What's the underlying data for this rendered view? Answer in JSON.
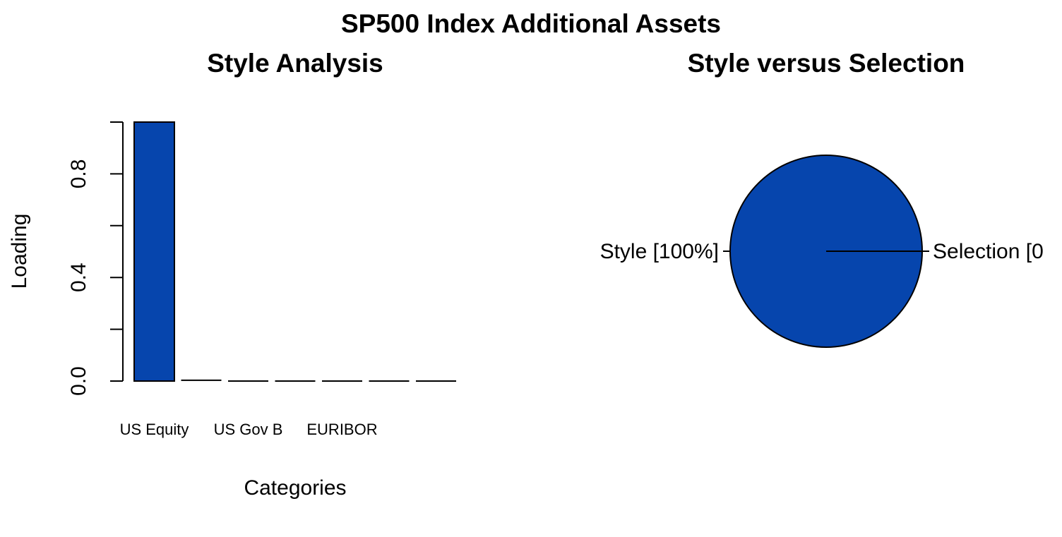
{
  "page": {
    "title": "SP500 Index Additional Assets"
  },
  "chart_data": [
    {
      "type": "bar",
      "title": "Style Analysis",
      "xlabel": "Categories",
      "ylabel": "Loading",
      "ylim": [
        0,
        1
      ],
      "yticks": [
        0.0,
        0.4,
        0.8
      ],
      "ytick_labels": [
        "0.0",
        "0.4",
        "0.8"
      ],
      "categories": [
        "US Equity",
        "",
        "US Gov B",
        "",
        "EURIBOR",
        "",
        ""
      ],
      "values": [
        1.0,
        0.003,
        0.0,
        0.0,
        0.0,
        0.0,
        0.0
      ],
      "bar_color": "#0645AD",
      "grid": false,
      "legend": "none"
    },
    {
      "type": "pie",
      "title": "Style versus Selection",
      "labels": [
        "Style [100%]",
        "Selection [0"
      ],
      "values": [
        100,
        0
      ],
      "slice_color": "#0645AD"
    }
  ]
}
